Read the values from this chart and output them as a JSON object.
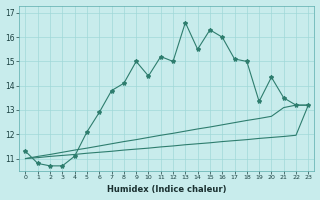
{
  "xlabel": "Humidex (Indice chaleur)",
  "bg_color": "#c8ecec",
  "grid_color": "#a0d8d8",
  "line_color": "#2e7d6e",
  "xlim": [
    -0.5,
    23.5
  ],
  "ylim": [
    10.5,
    17.3
  ],
  "yticks": [
    11,
    12,
    13,
    14,
    15,
    16,
    17
  ],
  "xticks": [
    0,
    1,
    2,
    3,
    4,
    5,
    6,
    7,
    8,
    9,
    10,
    11,
    12,
    13,
    14,
    15,
    16,
    17,
    18,
    19,
    20,
    21,
    22,
    23
  ],
  "series_main": [
    11.3,
    10.8,
    10.7,
    10.7,
    11.1,
    12.1,
    12.9,
    13.8,
    14.1,
    15.0,
    14.4,
    15.2,
    15.0,
    16.6,
    15.5,
    16.3,
    16.0,
    15.1,
    15.0,
    13.35,
    14.35,
    13.5,
    13.2,
    13.2
  ],
  "series_line1": [
    11.0,
    11.04,
    11.09,
    11.13,
    11.17,
    11.22,
    11.26,
    11.3,
    11.35,
    11.39,
    11.43,
    11.48,
    11.52,
    11.57,
    11.61,
    11.65,
    11.7,
    11.74,
    11.78,
    11.83,
    11.87,
    11.91,
    11.96,
    13.2
  ],
  "series_line2": [
    11.0,
    11.09,
    11.17,
    11.26,
    11.35,
    11.43,
    11.52,
    11.61,
    11.7,
    11.78,
    11.87,
    11.96,
    12.04,
    12.13,
    12.22,
    12.3,
    12.39,
    12.48,
    12.57,
    12.65,
    12.74,
    13.1,
    13.2,
    13.2
  ]
}
